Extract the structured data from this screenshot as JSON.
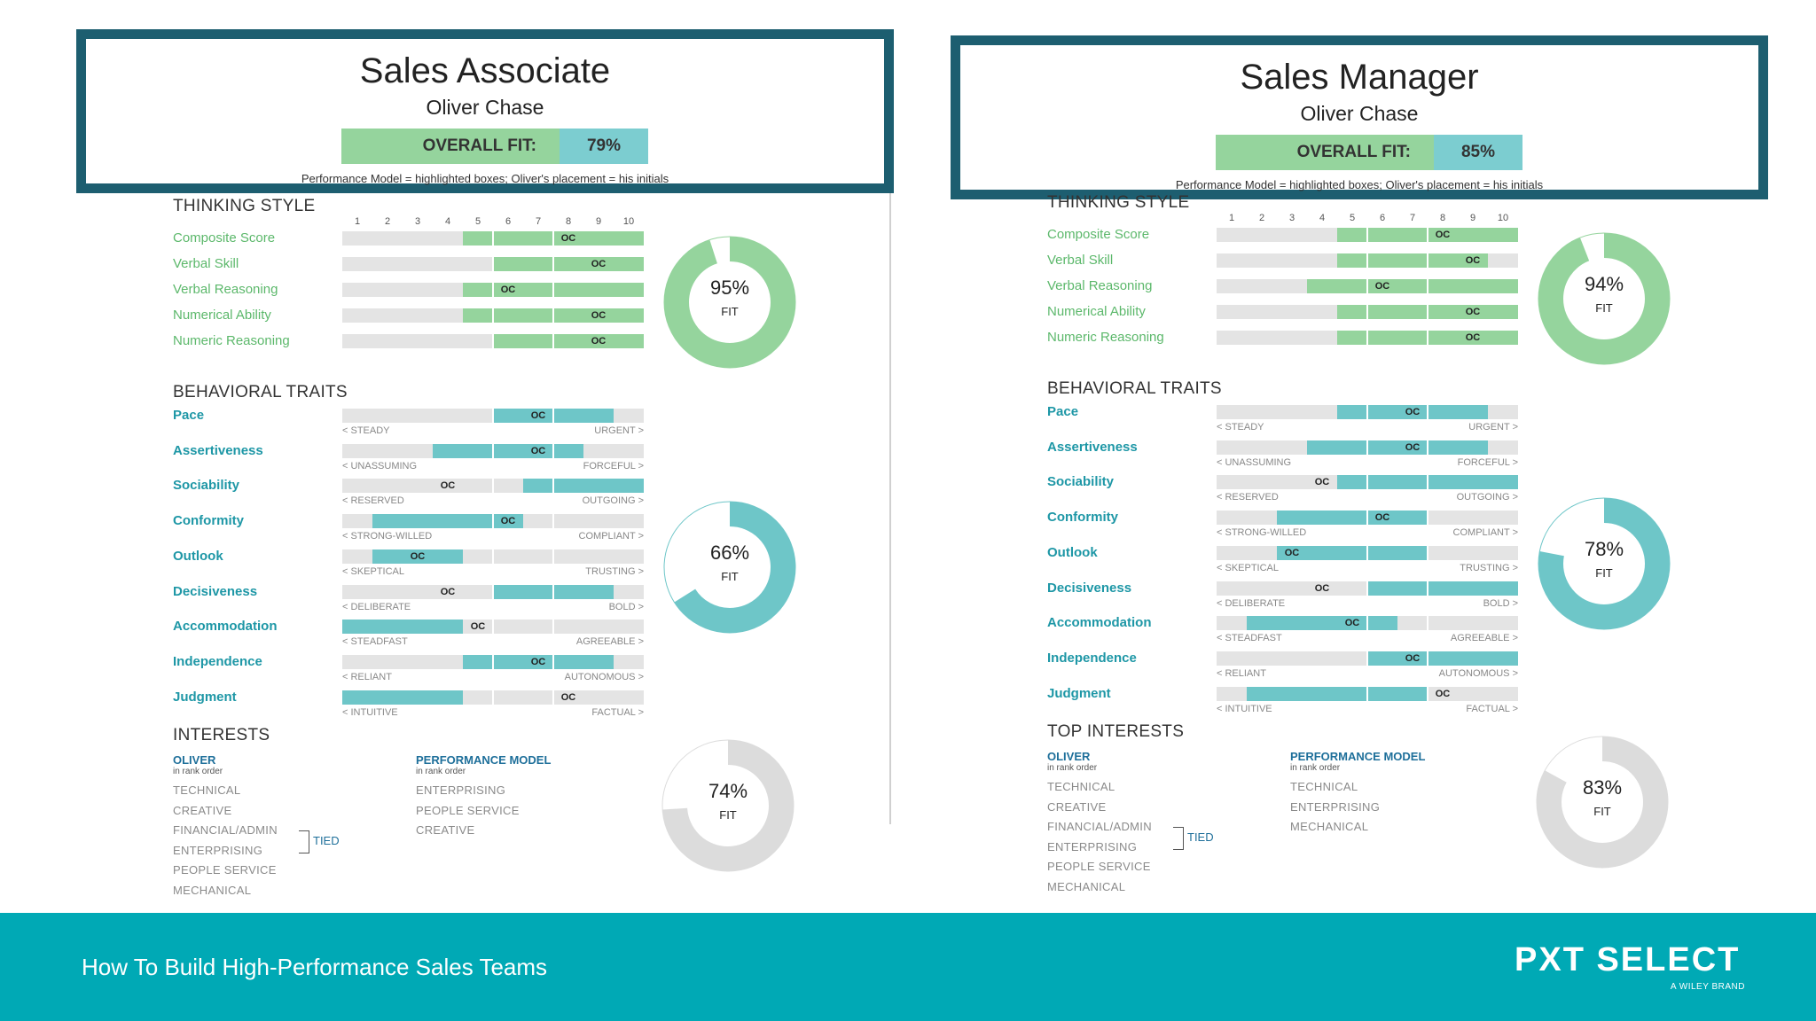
{
  "scale": [
    "1",
    "2",
    "3",
    "4",
    "5",
    "6",
    "7",
    "8",
    "9",
    "10"
  ],
  "oc_label": "OC",
  "colors": {
    "header_border": "#1d5e70",
    "thinking_fill": "#95d49d",
    "behavior_fill": "#6ec6c8",
    "footer": "#00a9b5",
    "interest_gray": "#dcdcdc"
  },
  "reports": [
    {
      "title": "Sales Associate",
      "person": "Oliver Chase",
      "overall_fit_label": "OVERALL FIT:",
      "overall_fit": "79%",
      "model_note": "Performance Model = highlighted boxes; Oliver's placement = his initials",
      "thinking": {
        "title": "THINKING STYLE",
        "fit_pct": "95%",
        "fit_value": 95,
        "fit_label": "FIT",
        "rows": [
          {
            "label": "Composite Score",
            "range": [
              5,
              10
            ],
            "oc": 8
          },
          {
            "label": "Verbal Skill",
            "range": [
              6,
              10
            ],
            "oc": 9
          },
          {
            "label": "Verbal Reasoning",
            "range": [
              5,
              10
            ],
            "oc": 6
          },
          {
            "label": "Numerical Ability",
            "range": [
              5,
              10
            ],
            "oc": 9
          },
          {
            "label": "Numeric Reasoning",
            "range": [
              6,
              10
            ],
            "oc": 9
          }
        ]
      },
      "behavior": {
        "title": "BEHAVIORAL TRAITS",
        "fit_pct": "66%",
        "fit_value": 66,
        "fit_label": "FIT",
        "rows": [
          {
            "label": "Pace",
            "range": [
              6,
              9
            ],
            "oc": 7,
            "low": "< STEADY",
            "high": "URGENT >"
          },
          {
            "label": "Assertiveness",
            "range": [
              4,
              8
            ],
            "oc": 7,
            "low": "< UNASSUMING",
            "high": "FORCEFUL >"
          },
          {
            "label": "Sociability",
            "range": [
              7,
              10
            ],
            "oc": 4,
            "low": "< RESERVED",
            "high": "OUTGOING >"
          },
          {
            "label": "Conformity",
            "range": [
              2,
              6
            ],
            "oc": 6,
            "low": "< STRONG-WILLED",
            "high": "COMPLIANT >"
          },
          {
            "label": "Outlook",
            "range": [
              2,
              4
            ],
            "oc": 3,
            "low": "< SKEPTICAL",
            "high": "TRUSTING >"
          },
          {
            "label": "Decisiveness",
            "range": [
              6,
              9
            ],
            "oc": 4,
            "low": "< DELIBERATE",
            "high": "BOLD >"
          },
          {
            "label": "Accommodation",
            "range": [
              1,
              4
            ],
            "oc": 5,
            "low": "< STEADFAST",
            "high": "AGREEABLE >"
          },
          {
            "label": "Independence",
            "range": [
              5,
              9
            ],
            "oc": 7,
            "low": "< RELIANT",
            "high": "AUTONOMOUS >"
          },
          {
            "label": "Judgment",
            "range": [
              1,
              4
            ],
            "oc": 8,
            "low": "< INTUITIVE",
            "high": "FACTUAL >"
          }
        ]
      },
      "interests": {
        "title": "INTERESTS",
        "fit_pct": "74%",
        "fit_value": 74,
        "fit_label": "FIT",
        "oliver_head": "OLIVER",
        "oliver_sub": "in rank order",
        "oliver": [
          "TECHNICAL",
          "CREATIVE",
          "FINANCIAL/ADMIN",
          "ENTERPRISING",
          "PEOPLE SERVICE",
          "MECHANICAL"
        ],
        "tied_label": "TIED",
        "model_head": "PERFORMANCE MODEL",
        "model_sub": "in rank order",
        "model": [
          "ENTERPRISING",
          "PEOPLE SERVICE",
          "CREATIVE"
        ]
      }
    },
    {
      "title": "Sales Manager",
      "person": "Oliver Chase",
      "overall_fit_label": "OVERALL FIT:",
      "overall_fit": "85%",
      "model_note": "Performance Model = highlighted boxes; Oliver's placement = his initials",
      "thinking": {
        "title": "THINKING STYLE",
        "fit_pct": "94%",
        "fit_value": 94,
        "fit_label": "FIT",
        "rows": [
          {
            "label": "Composite Score",
            "range": [
              5,
              10
            ],
            "oc": 8
          },
          {
            "label": "Verbal Skill",
            "range": [
              5,
              9
            ],
            "oc": 9
          },
          {
            "label": "Verbal Reasoning",
            "range": [
              4,
              10
            ],
            "oc": 6
          },
          {
            "label": "Numerical Ability",
            "range": [
              5,
              10
            ],
            "oc": 9
          },
          {
            "label": "Numeric Reasoning",
            "range": [
              5,
              10
            ],
            "oc": 9
          }
        ]
      },
      "behavior": {
        "title": "BEHAVIORAL TRAITS",
        "fit_pct": "78%",
        "fit_value": 78,
        "fit_label": "FIT",
        "rows": [
          {
            "label": "Pace",
            "range": [
              5,
              9
            ],
            "oc": 7,
            "low": "< STEADY",
            "high": "URGENT >"
          },
          {
            "label": "Assertiveness",
            "range": [
              4,
              9
            ],
            "oc": 7,
            "low": "< UNASSUMING",
            "high": "FORCEFUL >"
          },
          {
            "label": "Sociability",
            "range": [
              5,
              10
            ],
            "oc": 4,
            "low": "< RESERVED",
            "high": "OUTGOING >"
          },
          {
            "label": "Conformity",
            "range": [
              3,
              7
            ],
            "oc": 6,
            "low": "< STRONG-WILLED",
            "high": "COMPLIANT >"
          },
          {
            "label": "Outlook",
            "range": [
              3,
              7
            ],
            "oc": 3,
            "low": "< SKEPTICAL",
            "high": "TRUSTING >"
          },
          {
            "label": "Decisiveness",
            "range": [
              6,
              10
            ],
            "oc": 4,
            "low": "< DELIBERATE",
            "high": "BOLD >"
          },
          {
            "label": "Accommodation",
            "range": [
              2,
              6
            ],
            "oc": 5,
            "low": "< STEADFAST",
            "high": "AGREEABLE >"
          },
          {
            "label": "Independence",
            "range": [
              6,
              10
            ],
            "oc": 7,
            "low": "< RELIANT",
            "high": "AUTONOMOUS >"
          },
          {
            "label": "Judgment",
            "range": [
              2,
              7
            ],
            "oc": 8,
            "low": "< INTUITIVE",
            "high": "FACTUAL >"
          }
        ]
      },
      "interests": {
        "title": "TOP INTERESTS",
        "fit_pct": "83%",
        "fit_value": 83,
        "fit_label": "FIT",
        "oliver_head": "OLIVER",
        "oliver_sub": "in rank order",
        "oliver": [
          "TECHNICAL",
          "CREATIVE",
          "FINANCIAL/ADMIN",
          "ENTERPRISING",
          "PEOPLE SERVICE",
          "MECHANICAL"
        ],
        "tied_label": "TIED",
        "model_head": "PERFORMANCE MODEL",
        "model_sub": "in rank order",
        "model": [
          "TECHNICAL",
          "ENTERPRISING",
          "MECHANICAL"
        ]
      }
    }
  ],
  "footer": {
    "title": "How To Build High-Performance Sales Teams",
    "logo": "PXT SELECT",
    "logo_sub": "A WILEY BRAND"
  }
}
